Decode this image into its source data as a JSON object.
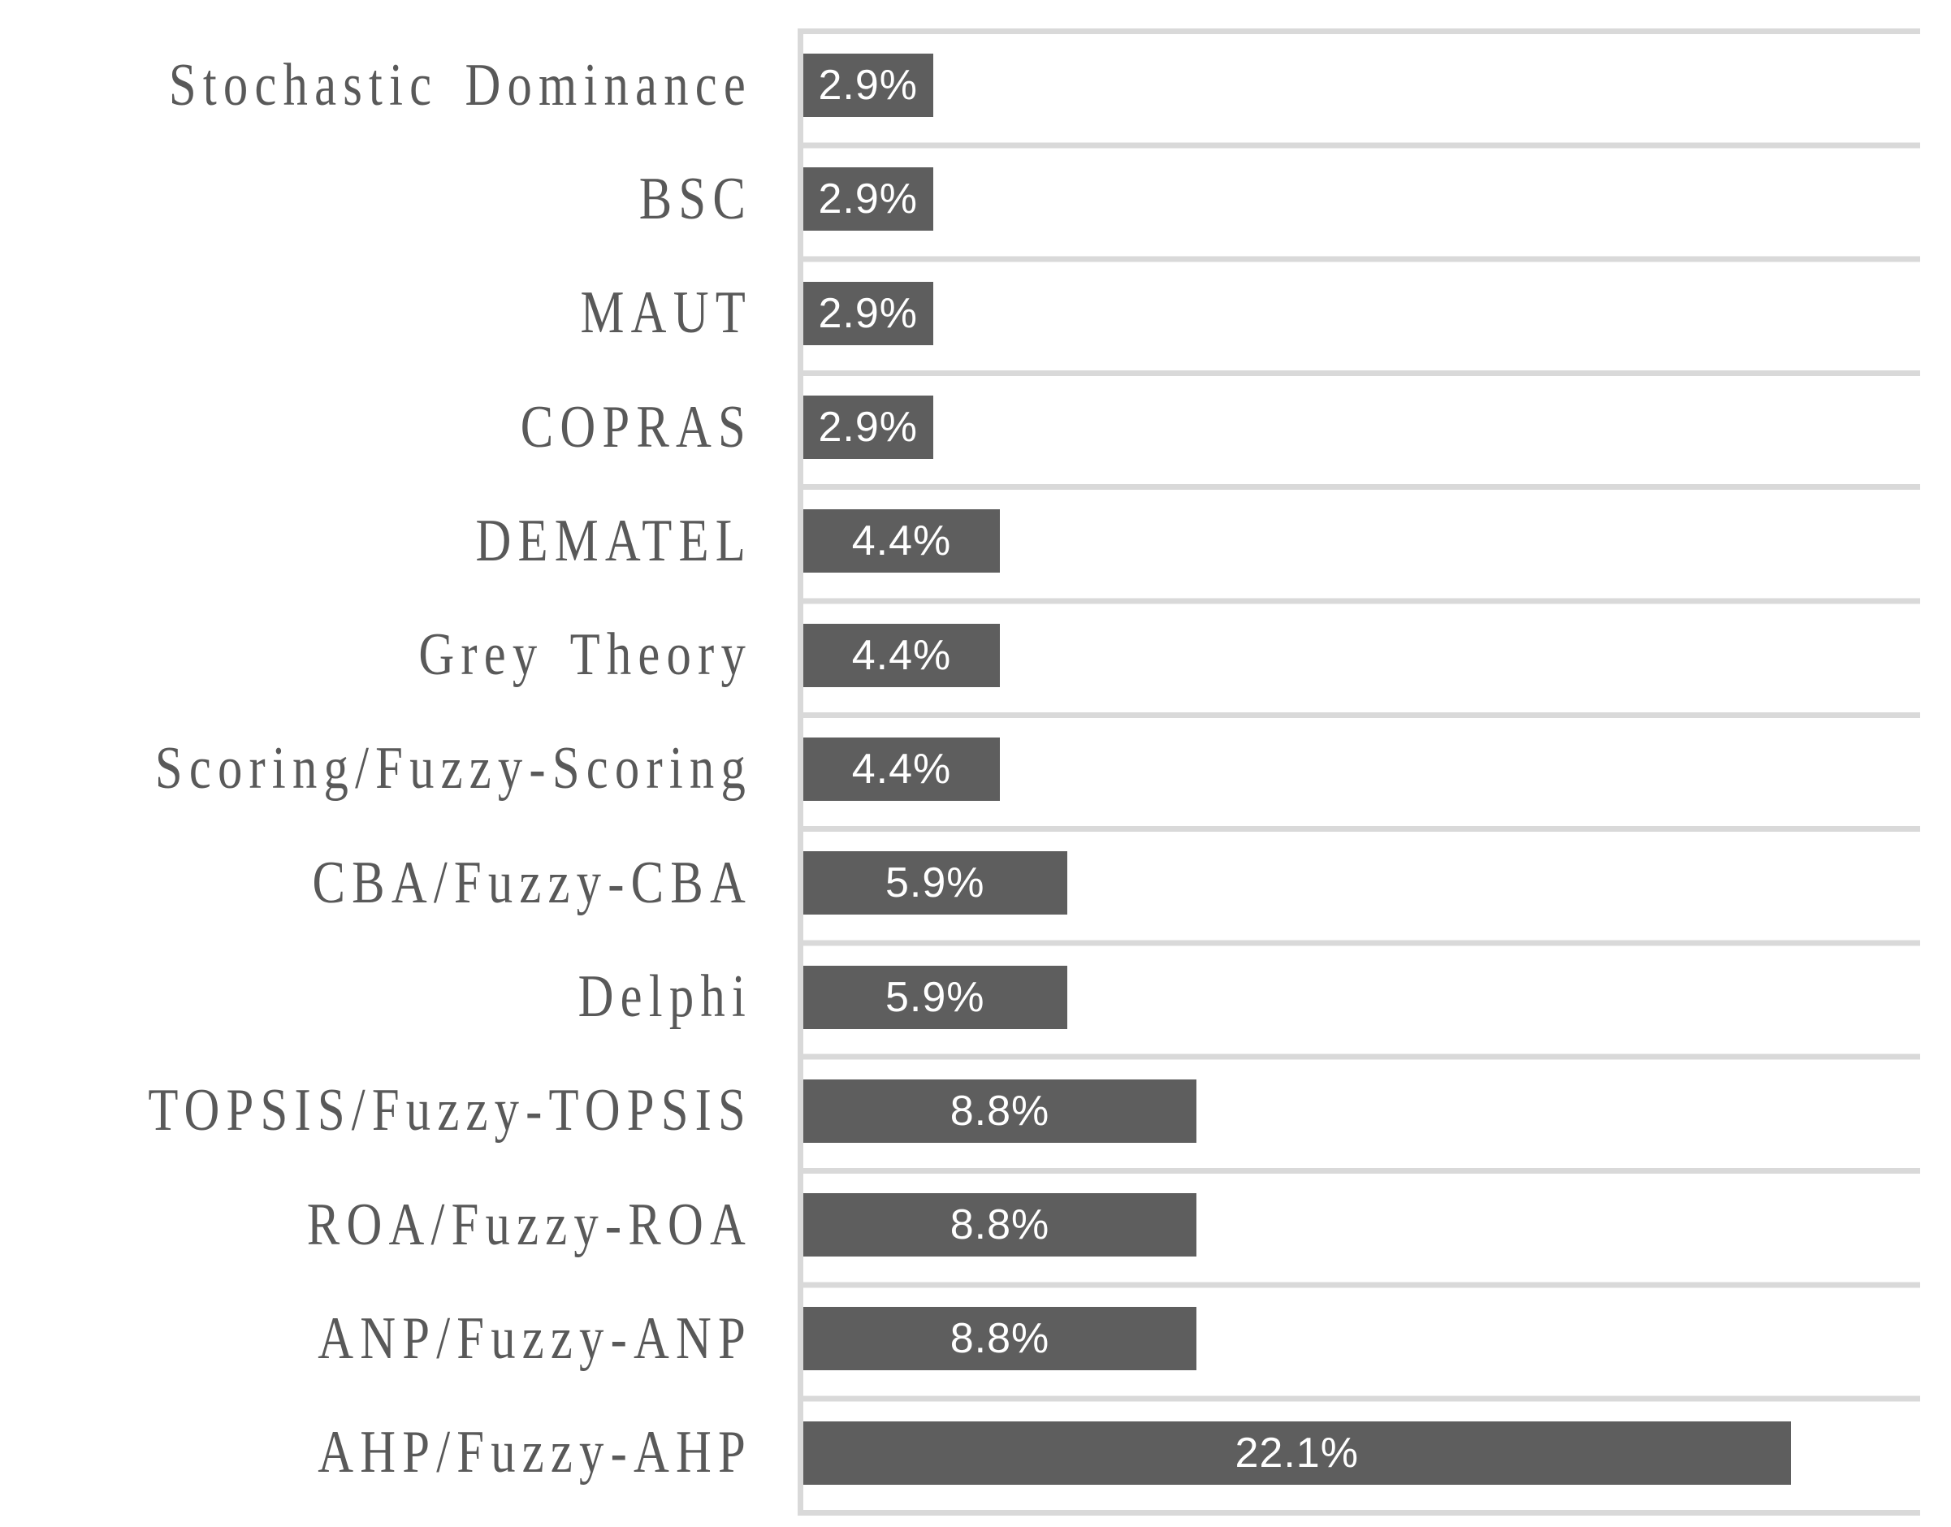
{
  "chart_data": {
    "type": "bar",
    "orientation": "horizontal",
    "title": "",
    "xlabel": "",
    "ylabel": "",
    "categories": [
      "Stochastic Dominance",
      "BSC",
      "MAUT",
      "COPRAS",
      "DEMATEL",
      "Grey Theory",
      "Scoring/Fuzzy-Scoring",
      "CBA/Fuzzy-CBA",
      "Delphi",
      "TOPSIS/Fuzzy-TOPSIS",
      "ROA/Fuzzy-ROA",
      "ANP/Fuzzy-ANP",
      "AHP/Fuzzy-AHP"
    ],
    "values": [
      2.9,
      2.9,
      2.9,
      2.9,
      4.4,
      4.4,
      4.4,
      5.9,
      5.9,
      8.8,
      8.8,
      8.8,
      22.1
    ],
    "value_labels": [
      "2.9%",
      "2.9%",
      "2.9%",
      "2.9%",
      "4.4%",
      "4.4%",
      "4.4%",
      "5.9%",
      "5.9%",
      "8.8%",
      "8.8%",
      "8.8%",
      "22.1%"
    ],
    "xlim": [
      0,
      25
    ],
    "grid": "category-separator-lines",
    "legend": null,
    "colors": {
      "bar": "#5e5e5e",
      "gridline": "#d9d9d9",
      "category_label": "#595959",
      "value_label": "#ffffff",
      "background": "#ffffff"
    }
  }
}
